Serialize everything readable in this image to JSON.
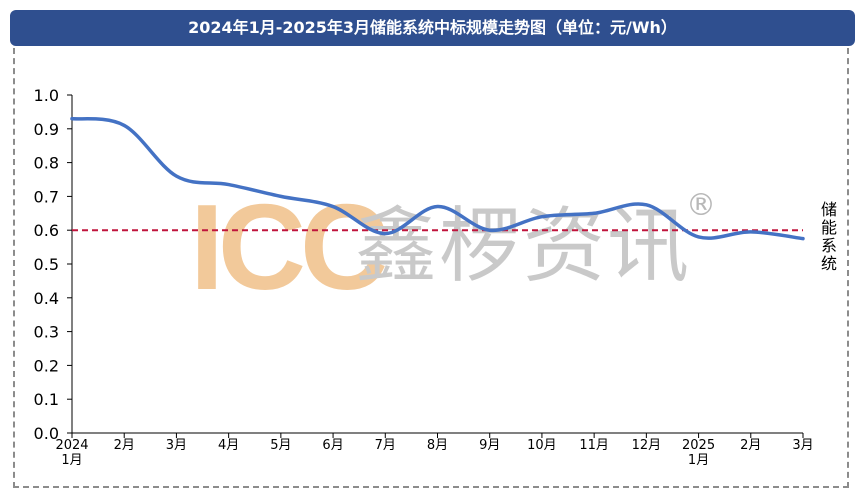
{
  "header": {
    "title": "2024年1月-2025年3月储能系统中标规模走势图（单位：元/Wh）"
  },
  "watermark": {
    "brand": "ICC",
    "name": "鑫椤资讯",
    "registered": "®"
  },
  "chart_data": {
    "type": "line",
    "title": "2024年1月-2025年3月储能系统中标规模走势图（单位：元/Wh）",
    "categories": [
      "2024\n1月",
      "2月",
      "3月",
      "4月",
      "5月",
      "6月",
      "7月",
      "8月",
      "9月",
      "10月",
      "11月",
      "12月",
      "2025\n1月",
      "2月",
      "3月"
    ],
    "series": [
      {
        "name": "储能系统",
        "values": [
          0.93,
          0.91,
          0.76,
          0.735,
          0.7,
          0.67,
          0.59,
          0.67,
          0.6,
          0.64,
          0.65,
          0.675,
          0.58,
          0.595,
          0.575
        ],
        "color": "#4472c4"
      }
    ],
    "reference_line": {
      "value": 0.6,
      "color": "#c0143c",
      "style": "dashed"
    },
    "ylim": [
      0.0,
      1.0
    ],
    "yticks": [
      "0.0",
      "0.1",
      "0.2",
      "0.3",
      "0.4",
      "0.5",
      "0.6",
      "0.7",
      "0.8",
      "0.9",
      "1.0"
    ],
    "xlabel": "",
    "ylabel": "",
    "grid": false,
    "legend": "right"
  }
}
